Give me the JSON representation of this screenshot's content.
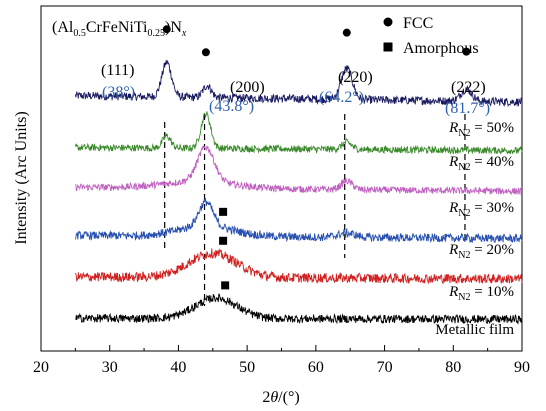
{
  "chart_data": {
    "type": "line",
    "title_text": "",
    "formula": {
      "prefix": "(Al",
      "sub1": "0.5",
      "mid": "CrFeNiTi",
      "sub2": "0.25",
      "suffix": ")N",
      "sub3": "x"
    },
    "xlabel": {
      "prefix": "2",
      "theta": "θ",
      "suffix": "/(°)"
    },
    "ylabel": "Intensity (Arc Units)",
    "xlim": [
      20,
      90
    ],
    "x_ticks": [
      "20",
      "30",
      "40",
      "50",
      "60",
      "70",
      "80",
      "90"
    ],
    "legend": {
      "position": "top-right",
      "items": [
        {
          "marker": "circle",
          "label": "FCC"
        },
        {
          "marker": "square",
          "label": "Amorphous"
        }
      ]
    },
    "peaks": [
      {
        "hkl": "(111)",
        "angle_label": "(38°)",
        "x": 38.0
      },
      {
        "hkl": "(200)",
        "angle_label": "(43.8°)",
        "x": 43.8
      },
      {
        "hkl": "(220)",
        "angle_label": "(64.2°)",
        "x": 64.2
      },
      {
        "hkl": "(222)",
        "angle_label": "(81.7°)",
        "x": 81.7
      }
    ],
    "series": [
      {
        "name": "R_N2 = 50%",
        "label_sym": "R",
        "label_sub": "N2",
        "label_val": "= 50%",
        "color": "#1a1a60",
        "x_range": [
          25,
          90
        ],
        "baseline": 0.74,
        "peaks": [
          [
            38.3,
            0.1,
            0.7
          ],
          [
            44.2,
            0.035,
            0.6
          ],
          [
            64.5,
            0.09,
            0.8
          ],
          [
            81.9,
            0.035,
            0.8
          ]
        ],
        "hump": [
          43,
          0.0,
          6
        ],
        "slope": -0.06,
        "noise": 0.012,
        "markers": [
          {
            "type": "circle",
            "x": 38.3
          },
          {
            "type": "circle",
            "x": 44.0
          },
          {
            "type": "circle",
            "x": 64.5
          },
          {
            "type": "circle",
            "x": 81.9
          }
        ]
      },
      {
        "name": "R_N2 = 40%",
        "label_sym": "R",
        "label_sub": "N2",
        "label_val": "= 40%",
        "color": "#3a8a2a",
        "x_range": [
          25,
          90
        ],
        "baseline": 0.59,
        "peaks": [
          [
            38.3,
            0.035,
            0.6
          ],
          [
            44.0,
            0.1,
            0.7
          ],
          [
            64.5,
            0.02,
            0.7
          ]
        ],
        "hump": [
          43,
          0.0,
          6
        ],
        "slope": -0.03,
        "noise": 0.01,
        "markers": []
      },
      {
        "name": "R_N2 = 30%",
        "label_sym": "R",
        "label_sub": "N2",
        "label_val": "= 30%",
        "color": "#c060c0",
        "x_range": [
          25,
          90
        ],
        "baseline": 0.475,
        "peaks": [
          [
            44.0,
            0.1,
            1.2
          ],
          [
            64.5,
            0.025,
            0.8
          ]
        ],
        "hump": [
          43,
          0.02,
          5
        ],
        "slope": -0.04,
        "noise": 0.01,
        "markers": []
      },
      {
        "name": "R_N2 = 20%",
        "label_sym": "R",
        "label_sub": "N2",
        "label_val": "= 20%",
        "color": "#2850b0",
        "x_range": [
          25,
          90
        ],
        "baseline": 0.335,
        "peaks": [
          [
            44.0,
            0.07,
            1.0
          ],
          [
            64.5,
            0.012,
            1.2
          ]
        ],
        "hump": [
          44,
          0.03,
          4
        ],
        "slope": -0.03,
        "noise": 0.012,
        "markers": [
          {
            "type": "square",
            "x": 46.5
          }
        ]
      },
      {
        "name": "R_N2 = 10%",
        "label_sym": "R",
        "label_sub": "N2",
        "label_val": "= 10%",
        "color": "#d02020",
        "x_range": [
          25,
          90
        ],
        "baseline": 0.215,
        "peaks": [],
        "hump": [
          45.0,
          0.07,
          3.5
        ],
        "slope": -0.02,
        "noise": 0.014,
        "markers": [
          {
            "type": "square",
            "x": 46.5
          }
        ]
      },
      {
        "name": "Metallic film",
        "label_sym": "",
        "label_sub": "",
        "label_val": "Metallic film",
        "color": "#000000",
        "x_range": [
          25,
          90
        ],
        "baseline": 0.095,
        "peaks": [],
        "hump": [
          45.5,
          0.06,
          3.0
        ],
        "slope": -0.01,
        "noise": 0.012,
        "markers": [
          {
            "type": "square",
            "x": 46.8
          }
        ]
      }
    ]
  }
}
